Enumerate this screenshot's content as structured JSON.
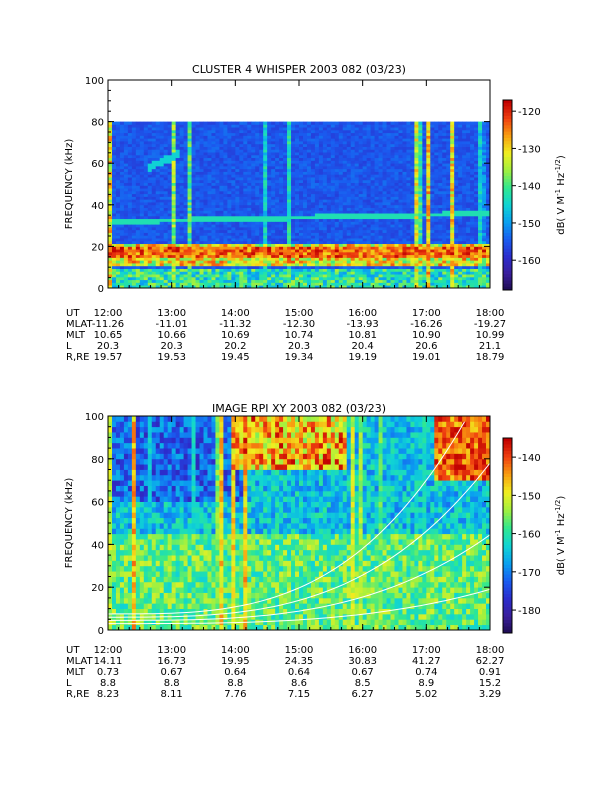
{
  "chart_data": [
    {
      "type": "heatmap",
      "title": "CLUSTER 4 WHISPER 2003 082 (03/23)",
      "ylabel": "FREQUENCY (kHz)",
      "colorbar_label": "dB( V M^-1 Hz^-1/2)",
      "colorbar_label_main": "dB( V M",
      "colorbar_label_tail": " Hz",
      "colorbar_label_end": ")",
      "colorbar_sup1": "-1",
      "colorbar_sup2": "-1/2",
      "xlim": [
        "12:00",
        "18:00"
      ],
      "ylim": [
        0,
        100
      ],
      "data_ylim": [
        0,
        80
      ],
      "yticks": [
        "0",
        "20",
        "40",
        "60",
        "80",
        "100"
      ],
      "xticks": [
        "12:00",
        "13:00",
        "14:00",
        "15:00",
        "16:00",
        "17:00",
        "18:00"
      ],
      "colorbar_ticks": [
        "-120",
        "-130",
        "-140",
        "-150",
        "-160"
      ],
      "colorbar_range": [
        -168,
        -117
      ],
      "ephemeris": [
        {
          "label": "UT",
          "values": [
            "12:00",
            "13:00",
            "14:00",
            "15:00",
            "16:00",
            "17:00",
            "18:00"
          ]
        },
        {
          "label": "MLAT",
          "values": [
            "-11.26",
            "-11.01",
            "-11.32",
            "-12.30",
            "-13.93",
            "-16.26",
            "-19.27"
          ]
        },
        {
          "label": "MLT",
          "values": [
            "10.65",
            "10.66",
            "10.69",
            "10.74",
            "10.81",
            "10.90",
            "10.99"
          ]
        },
        {
          "label": "L",
          "values": [
            "20.3",
            "20.3",
            "20.2",
            "20.3",
            "20.4",
            "20.6",
            "21.1"
          ]
        },
        {
          "label": "R,RE",
          "values": [
            "19.57",
            "19.53",
            "19.45",
            "19.34",
            "19.19",
            "19.01",
            "18.79"
          ]
        }
      ]
    },
    {
      "type": "heatmap",
      "title": "IMAGE RPI XY 2003 082 (03/23)",
      "ylabel": "FREQUENCY (kHz)",
      "colorbar_label": "dB( V M^-1 Hz^-1/2)",
      "colorbar_label_main": "dB( V M",
      "colorbar_label_tail": " Hz",
      "colorbar_label_end": ")",
      "colorbar_sup1": "-1",
      "colorbar_sup2": "-1/2",
      "xlim": [
        "12:00",
        "18:00"
      ],
      "ylim": [
        0,
        100
      ],
      "yticks": [
        "0",
        "20",
        "40",
        "60",
        "80",
        "100"
      ],
      "xticks": [
        "12:00",
        "13:00",
        "14:00",
        "15:00",
        "16:00",
        "17:00",
        "18:00"
      ],
      "colorbar_ticks": [
        "-140",
        "-150",
        "-160",
        "-170",
        "-180"
      ],
      "colorbar_range": [
        -186,
        -135
      ],
      "ephemeris": [
        {
          "label": "UT",
          "values": [
            "12:00",
            "13:00",
            "14:00",
            "15:00",
            "16:00",
            "17:00",
            "18:00"
          ]
        },
        {
          "label": "MLAT",
          "values": [
            "14.11",
            "16.73",
            "19.95",
            "24.35",
            "30.83",
            "41.27",
            "62.27"
          ]
        },
        {
          "label": "MLT",
          "values": [
            "0.73",
            "0.67",
            "0.64",
            "0.64",
            "0.67",
            "0.74",
            "0.91"
          ]
        },
        {
          "label": "L",
          "values": [
            "8.8",
            "8.8",
            "8.8",
            "8.6",
            "8.5",
            "8.9",
            "15.2"
          ]
        },
        {
          "label": "R,RE",
          "values": [
            "8.23",
            "8.11",
            "7.76",
            "7.15",
            "6.27",
            "5.02",
            "3.29"
          ]
        }
      ]
    }
  ],
  "colors": {
    "colormap": [
      "#1a0a4a",
      "#3a1e9a",
      "#2c2ccc",
      "#1a5cf0",
      "#0aa0f0",
      "#10d4d4",
      "#30e890",
      "#a0f040",
      "#f0f020",
      "#f8a010",
      "#f04010",
      "#c00000"
    ]
  }
}
